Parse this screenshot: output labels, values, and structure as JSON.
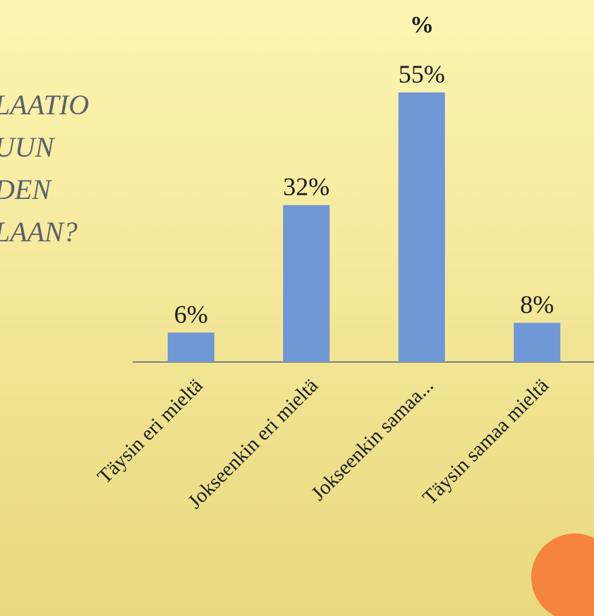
{
  "chart_data": {
    "type": "bar",
    "title": "%",
    "annotations": [
      "LAATIO",
      "UUN",
      "DEN",
      "LAAN?"
    ],
    "categories": [
      "Täysin eri mieltä",
      "Jokseenkin eri mieltä",
      "Jokseenkin samaa...",
      "Täysin samaa mieltä"
    ],
    "values": [
      6,
      32,
      55,
      8
    ],
    "value_labels": [
      "6%",
      "32%",
      "55%",
      "8%"
    ],
    "color": "#7097d6"
  }
}
